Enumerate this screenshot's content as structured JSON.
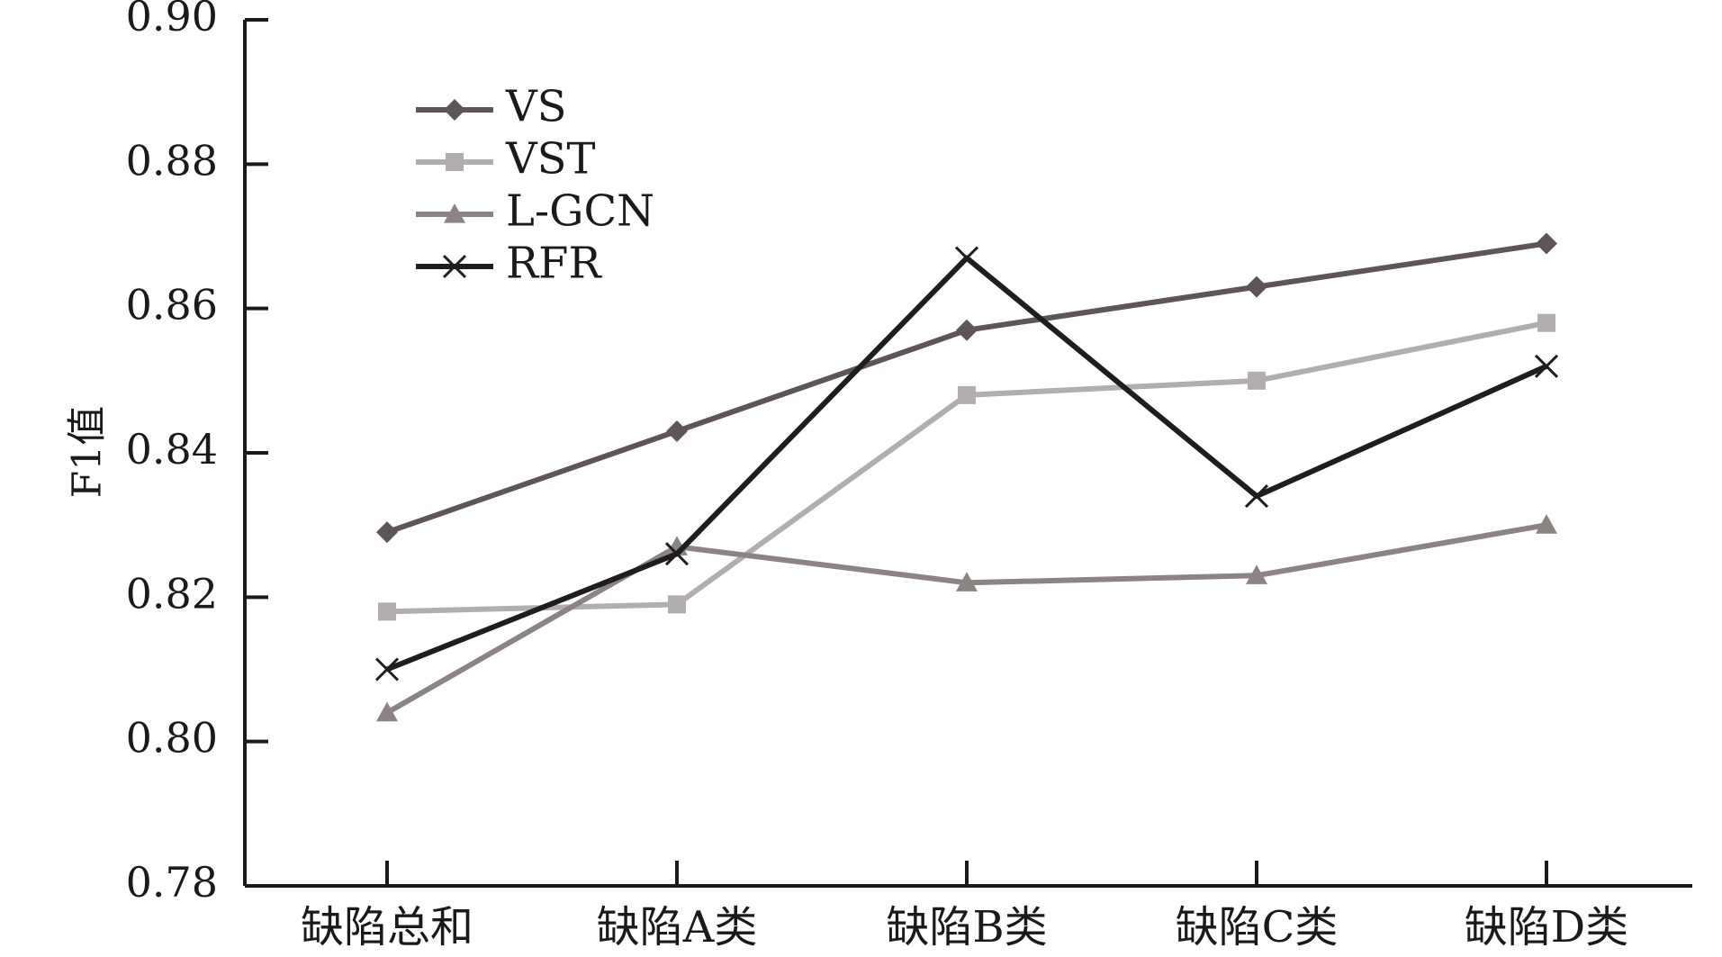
{
  "chart_data": {
    "type": "line",
    "categories": [
      "缺陷总和",
      "缺陷A类",
      "缺陷B类",
      "缺陷C类",
      "缺陷D类"
    ],
    "ylabel": "F1值",
    "ylim": [
      0.78,
      0.9
    ],
    "yticks": [
      "0.78",
      "0.80",
      "0.82",
      "0.84",
      "0.86",
      "0.88",
      "0.90"
    ],
    "grid": false,
    "legend_position": "top-left",
    "series": [
      {
        "name": "VS",
        "marker": "diamond",
        "color": "#5e5555",
        "values": [
          0.829,
          0.843,
          0.857,
          0.863,
          0.869
        ]
      },
      {
        "name": "VST",
        "marker": "square",
        "color": "#b3aeae",
        "values": [
          0.818,
          0.819,
          0.848,
          0.85,
          0.858
        ]
      },
      {
        "name": "L-GCN",
        "marker": "triangle",
        "color": "#8c8383",
        "values": [
          0.804,
          0.827,
          0.822,
          0.823,
          0.83
        ]
      },
      {
        "name": "RFR",
        "marker": "x",
        "color": "#1e1e1e",
        "values": [
          0.81,
          0.826,
          0.867,
          0.834,
          0.852
        ]
      }
    ]
  }
}
